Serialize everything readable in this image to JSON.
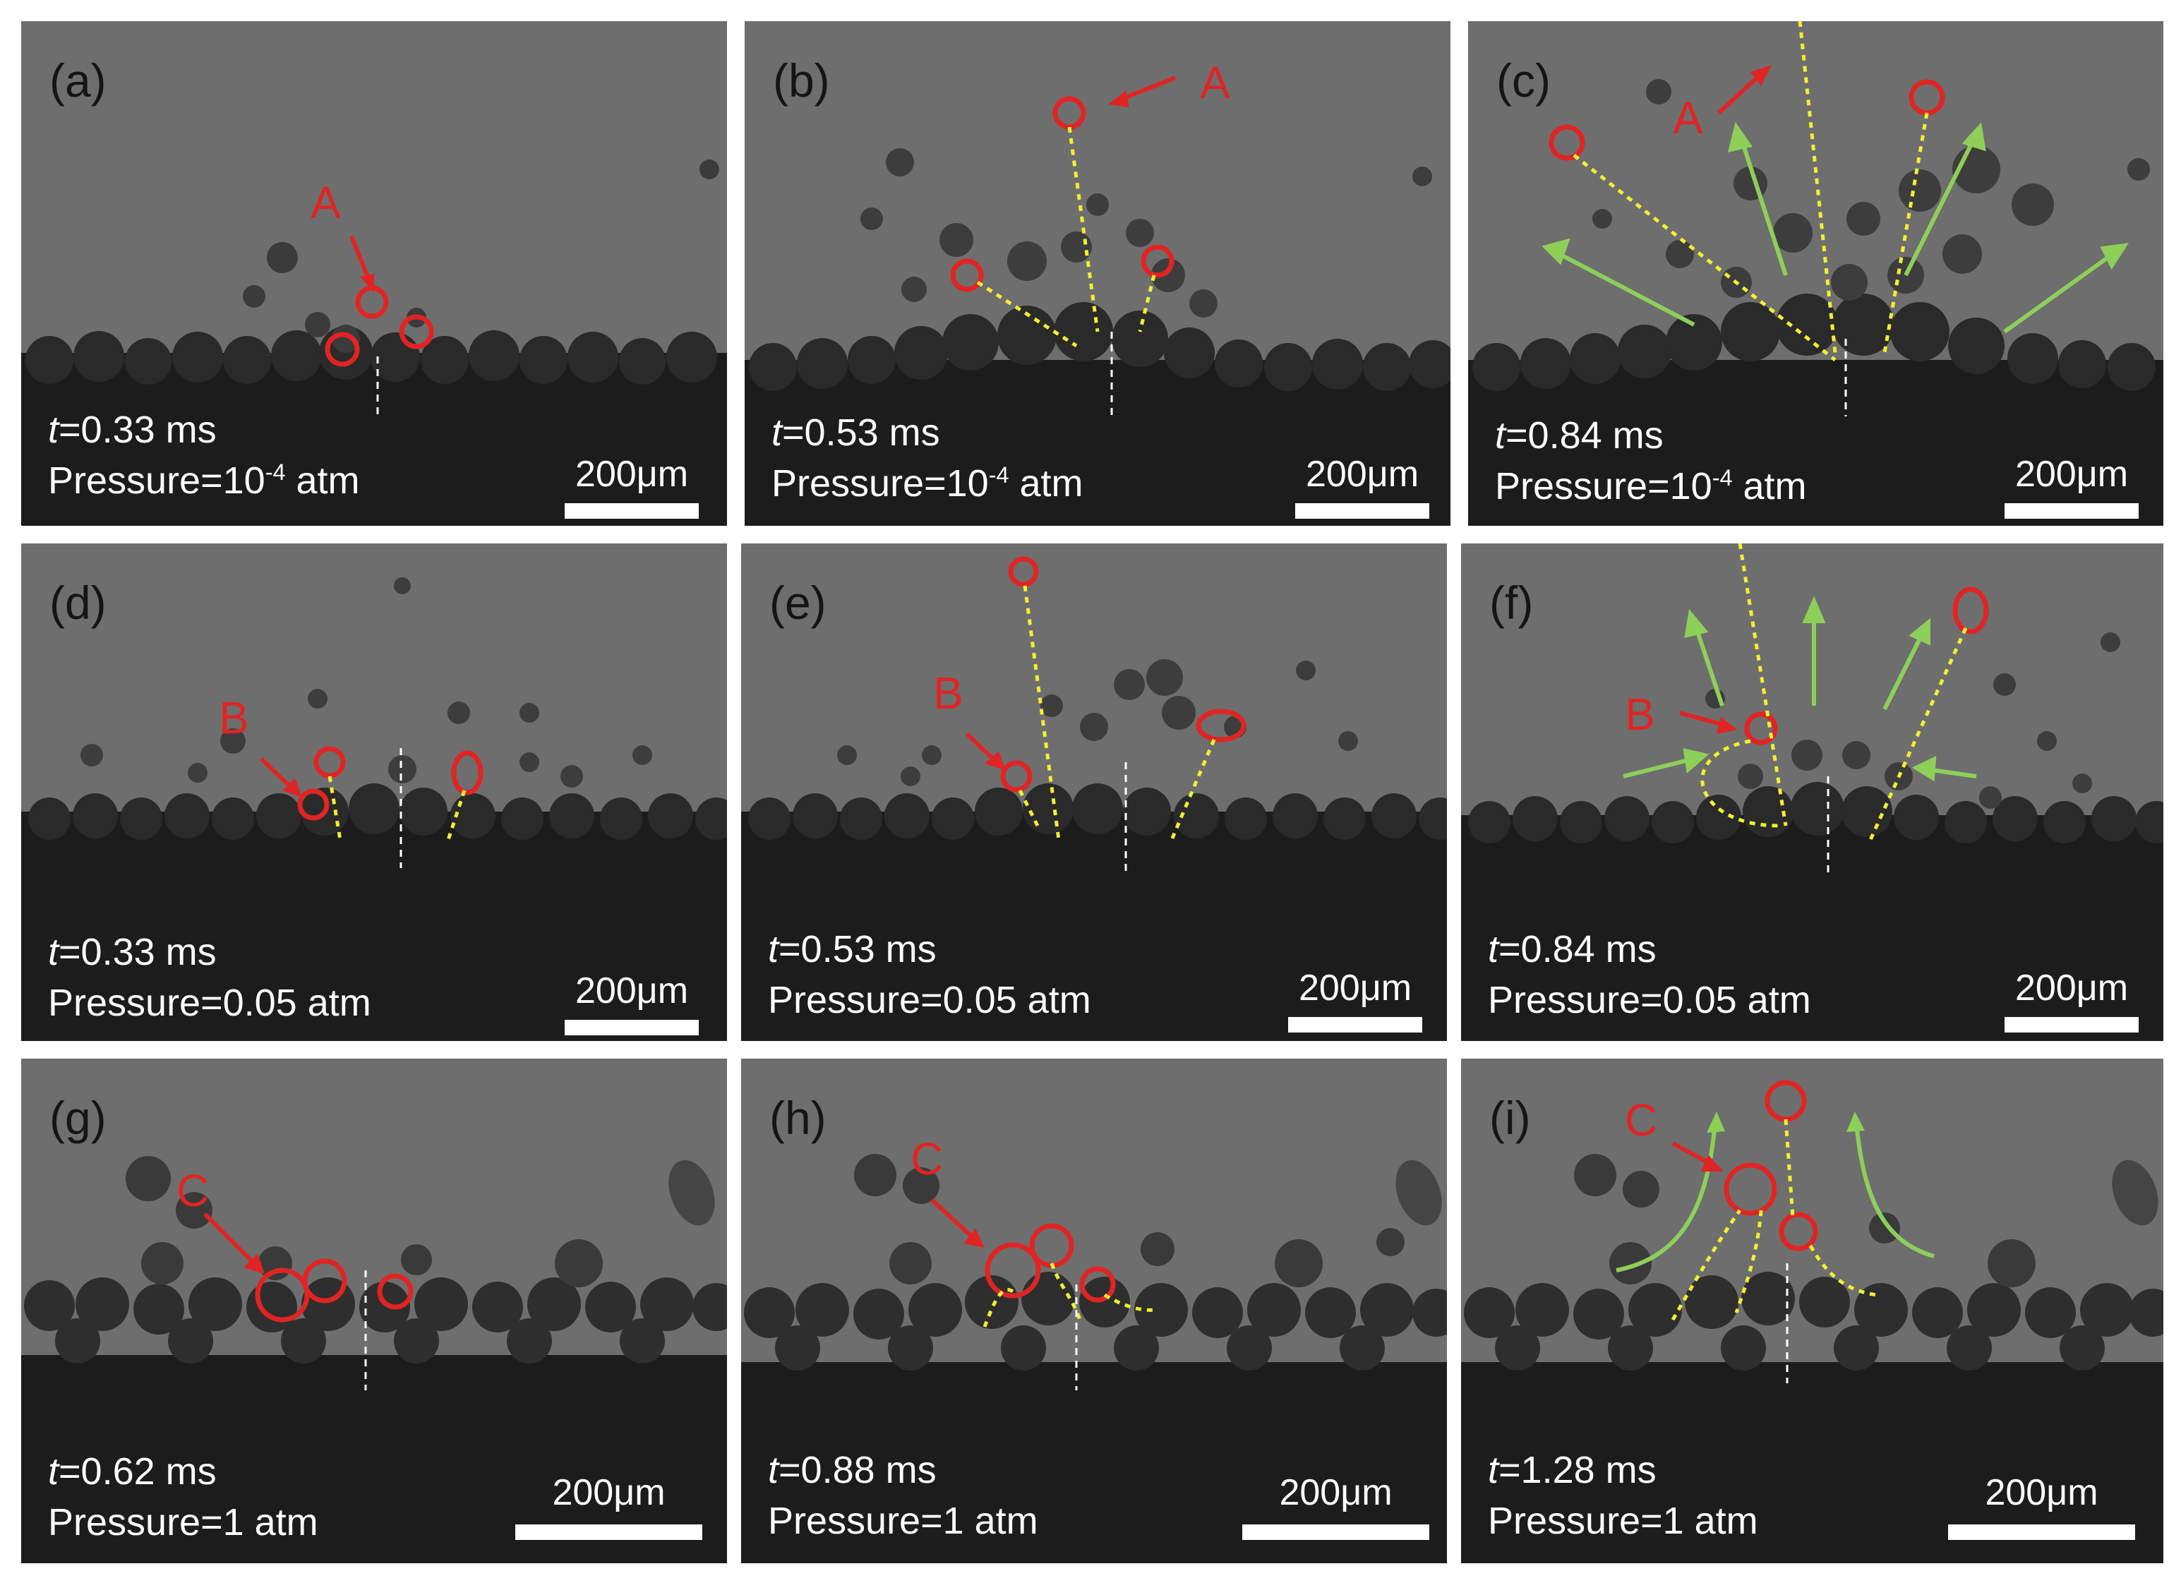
{
  "colors": {
    "marker_red": "#e02424",
    "trajectory_yellow": "#f0f032",
    "flow_green": "#8ecf5a",
    "background_gray": "#6e6e6e",
    "powder_dark": "#1c1c1c"
  },
  "panels": [
    {
      "label": "(a)",
      "time_var": "t",
      "time": "=0.33 ms",
      "pressure_prefix": "Pressure=10",
      "pressure_exp": "-4",
      "pressure_suffix": " atm",
      "scale": "200μm",
      "markers": [
        "A"
      ]
    },
    {
      "label": "(b)",
      "time_var": "t",
      "time": "=0.53 ms",
      "pressure_prefix": "Pressure=10",
      "pressure_exp": "-4",
      "pressure_suffix": " atm",
      "scale": "200μm",
      "markers": [
        "A"
      ]
    },
    {
      "label": "(c)",
      "time_var": "t",
      "time": "=0.84 ms",
      "pressure_prefix": "Pressure=10",
      "pressure_exp": "-4",
      "pressure_suffix": " atm",
      "scale": "200μm",
      "markers": [
        "A"
      ]
    },
    {
      "label": "(d)",
      "time_var": "t",
      "time": "=0.33 ms",
      "pressure_prefix": "Pressure=0.05 atm",
      "pressure_exp": "",
      "pressure_suffix": "",
      "scale": "200μm",
      "markers": [
        "B"
      ]
    },
    {
      "label": "(e)",
      "time_var": "t",
      "time": "=0.53 ms",
      "pressure_prefix": "Pressure=0.05 atm",
      "pressure_exp": "",
      "pressure_suffix": "",
      "scale": "200μm",
      "markers": [
        "B"
      ]
    },
    {
      "label": "(f)",
      "time_var": "t",
      "time": "=0.84 ms",
      "pressure_prefix": "Pressure=0.05 atm",
      "pressure_exp": "",
      "pressure_suffix": "",
      "scale": "200μm",
      "markers": [
        "B"
      ]
    },
    {
      "label": "(g)",
      "time_var": "t",
      "time": "=0.62 ms",
      "pressure_prefix": "Pressure=1 atm",
      "pressure_exp": "",
      "pressure_suffix": "",
      "scale": "200μm",
      "markers": [
        "C"
      ]
    },
    {
      "label": "(h)",
      "time_var": "t",
      "time": "=0.88 ms",
      "pressure_prefix": "Pressure=1 atm",
      "pressure_exp": "",
      "pressure_suffix": "",
      "scale": "200μm",
      "markers": [
        "C"
      ]
    },
    {
      "label": "(i)",
      "time_var": "t",
      "time": "=1.28 ms",
      "pressure_prefix": "Pressure=1 atm",
      "pressure_exp": "",
      "pressure_suffix": "",
      "scale": "200μm",
      "markers": [
        "C"
      ]
    }
  ]
}
